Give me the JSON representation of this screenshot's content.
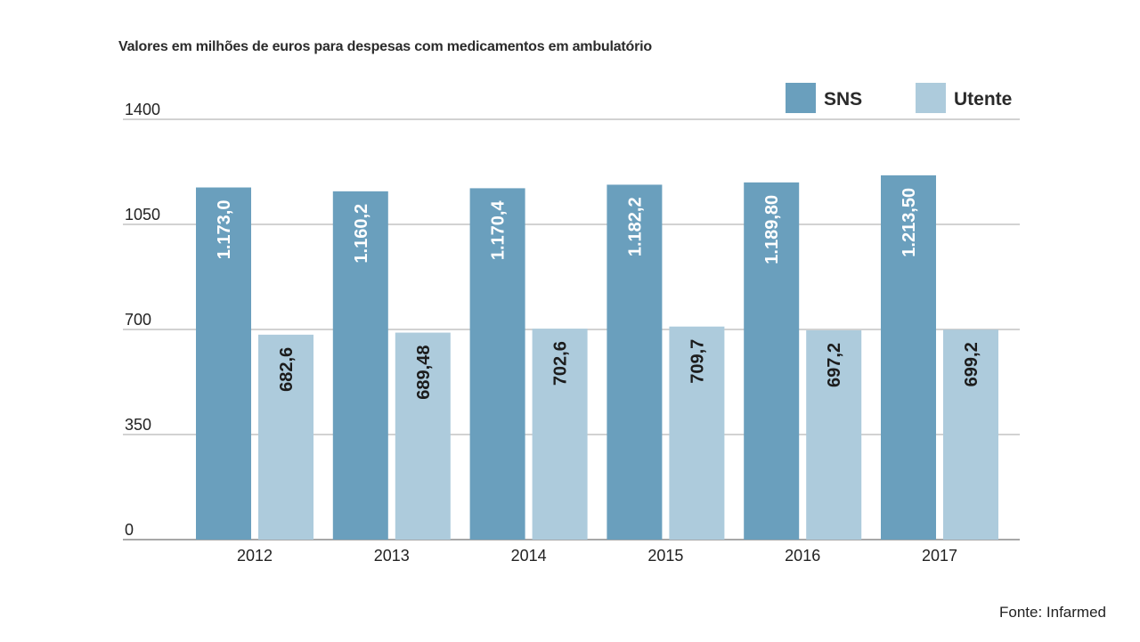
{
  "chart_data": {
    "type": "bar",
    "title": "Valores em milhões de euros para despesas com medicamentos em ambulatório",
    "source": "Fonte: Infarmed",
    "categories": [
      "2012",
      "2013",
      "2014",
      "2015",
      "2016",
      "2017"
    ],
    "series": [
      {
        "name": "SNS",
        "color": "#6a9fbd",
        "values": [
          1173.0,
          1160.2,
          1170.4,
          1182.2,
          1189.8,
          1213.5
        ],
        "labels": [
          "1.173,0",
          "1.160,2",
          "1.170,4",
          "1.182,2",
          "1.189,80",
          "1.213,50"
        ],
        "label_color": "#ffffff"
      },
      {
        "name": "Utente",
        "color": "#adcbdc",
        "values": [
          682.6,
          689.48,
          702.6,
          709.7,
          697.2,
          699.2
        ],
        "labels": [
          "682,6",
          "689,48",
          "702,6",
          "709,7",
          "697,2",
          "699,2"
        ],
        "label_color": "#1c1c1c"
      }
    ],
    "yticks": [
      0,
      350,
      700,
      1050,
      1400
    ],
    "ylim": [
      0,
      1400
    ],
    "xlabel": "",
    "ylabel": "",
    "grid": true,
    "legend": "top-right"
  }
}
